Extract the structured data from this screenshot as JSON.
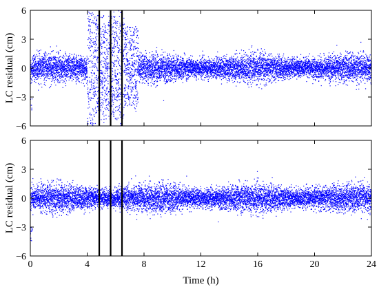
{
  "chart_data": [
    {
      "type": "scatter",
      "title": "",
      "xlabel": "",
      "ylabel": "LC residual (cm)",
      "xlim": [
        0,
        24
      ],
      "ylim": [
        -6,
        6
      ],
      "xticks": [
        0,
        4,
        8,
        12,
        16,
        20,
        24
      ],
      "yticks": [
        -6,
        -3,
        0,
        3,
        6
      ],
      "grid": false,
      "series_color": "#0000ff",
      "line_color": "#000000",
      "vertical_lines": [
        4.85,
        5.65,
        6.45
      ],
      "noise_bands": [
        {
          "x_from": 0,
          "x_to": 24,
          "typical_amplitude": 1.2
        },
        {
          "x_from": 4.0,
          "x_to": 4.45,
          "typical_amplitude": 6
        },
        {
          "x_from": 4.45,
          "x_to": 5.2,
          "typical_amplitude": 3.5
        },
        {
          "x_from": 5.2,
          "x_to": 5.5,
          "typical_amplitude": 2.5
        },
        {
          "x_from": 5.5,
          "x_to": 6.3,
          "typical_amplitude": 3.5
        },
        {
          "x_from": 6.3,
          "x_to": 6.6,
          "typical_amplitude": 6
        },
        {
          "x_from": 6.6,
          "x_to": 7.6,
          "typical_amplitude": 2.4
        }
      ]
    },
    {
      "type": "scatter",
      "title": "",
      "xlabel": "Time (h)",
      "ylabel": "LC residual (cm)",
      "xlim": [
        0,
        24
      ],
      "ylim": [
        -6,
        6
      ],
      "xticks": [
        0,
        4,
        8,
        12,
        16,
        20,
        24
      ],
      "yticks": [
        -6,
        -3,
        0,
        3,
        6
      ],
      "grid": false,
      "series_color": "#0000ff",
      "line_color": "#000000",
      "vertical_lines": [
        4.85,
        5.65,
        6.45
      ],
      "noise_bands": [
        {
          "x_from": 0,
          "x_to": 24,
          "typical_amplitude": 1.2
        }
      ]
    }
  ]
}
